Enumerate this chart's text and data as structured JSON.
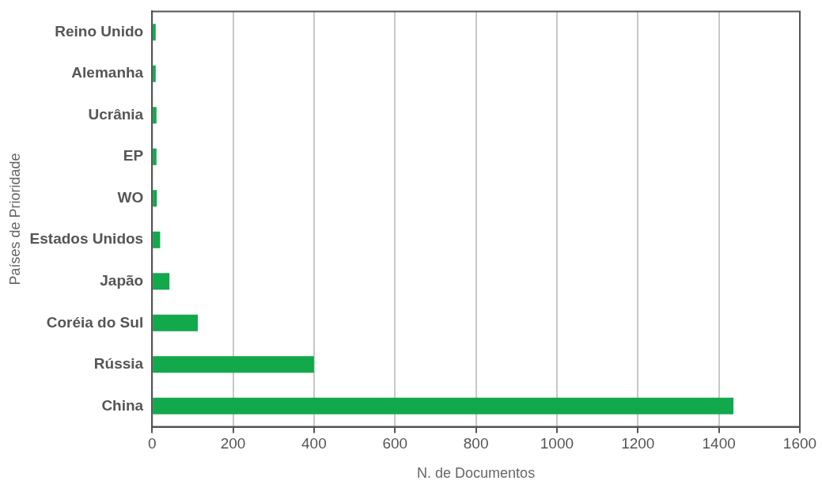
{
  "chart_data": {
    "type": "bar",
    "orientation": "horizontal",
    "xlabel": "N. de Documentos",
    "ylabel": "Países de Prioridade",
    "categories": [
      "Reino Unido",
      "Alemanha",
      "Ucrânia",
      "EP",
      "WO",
      "Estados Unidos",
      "Japão",
      "Coréia do Sul",
      "Rússia",
      "China"
    ],
    "values": [
      9,
      9,
      11,
      11,
      12,
      20,
      43,
      113,
      400,
      1436
    ],
    "color": "#12a84c",
    "xlim": [
      0,
      1600
    ],
    "xticks": [
      0,
      200,
      400,
      600,
      800,
      1000,
      1200,
      1400,
      1600
    ],
    "grid": "x",
    "legend": false
  }
}
